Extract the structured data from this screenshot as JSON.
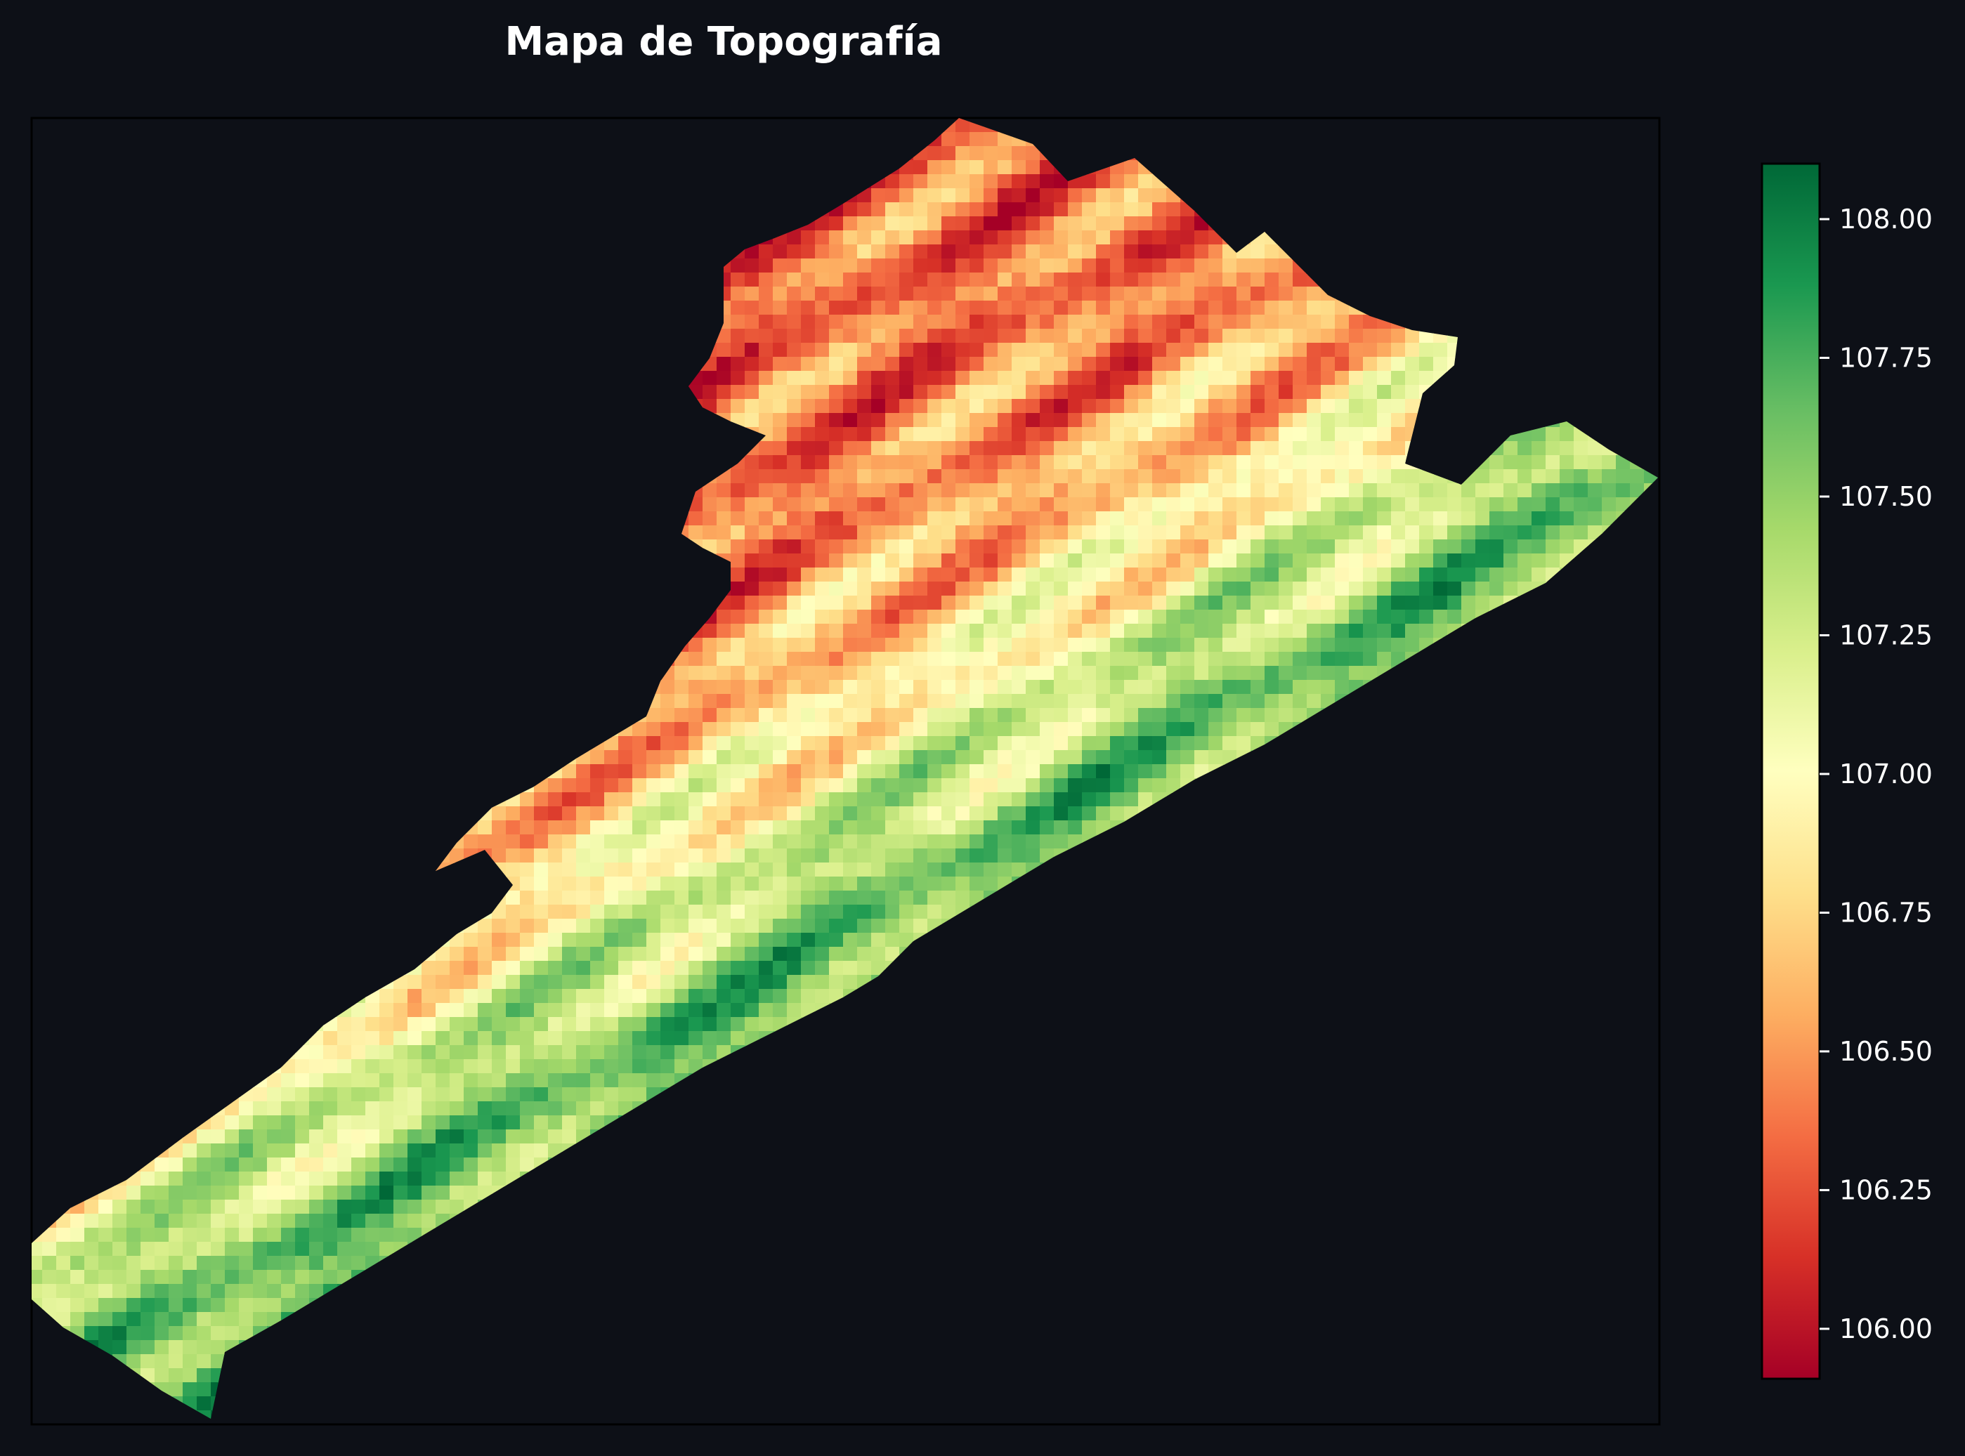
{
  "chart_data": {
    "type": "heatmap",
    "title": "Mapa de Topografía",
    "xlabel": "",
    "ylabel": "",
    "colormap": "RdYlGn",
    "background_color": "#0d1017",
    "axes": {
      "x_ticks_visible": false,
      "y_ticks_visible": false,
      "grid": false
    },
    "colorbar": {
      "placement": "right",
      "range": [
        105.91,
        108.1
      ],
      "ticks": [
        106.0,
        106.25,
        106.5,
        106.75,
        107.0,
        107.25,
        107.5,
        107.75,
        108.0
      ],
      "tick_labels": [
        "106.00",
        "106.25",
        "106.50",
        "106.75",
        "107.00",
        "107.25",
        "107.50",
        "107.75",
        "108.00"
      ]
    },
    "colormap_stops": [
      "#a50026",
      "#d73027",
      "#f46d43",
      "#fdae61",
      "#fee08b",
      "#ffffbf",
      "#d9ef8b",
      "#a6d96a",
      "#66bd63",
      "#1a9850",
      "#006837"
    ],
    "field": {
      "description_values": "elevation samples (data units) along a diagonal field strip",
      "min_value": 105.91,
      "max_value": 108.1,
      "low_region": "upper-left edge of strip (~106.0)",
      "high_region": "central and lower-right bands (~108.0)"
    }
  }
}
